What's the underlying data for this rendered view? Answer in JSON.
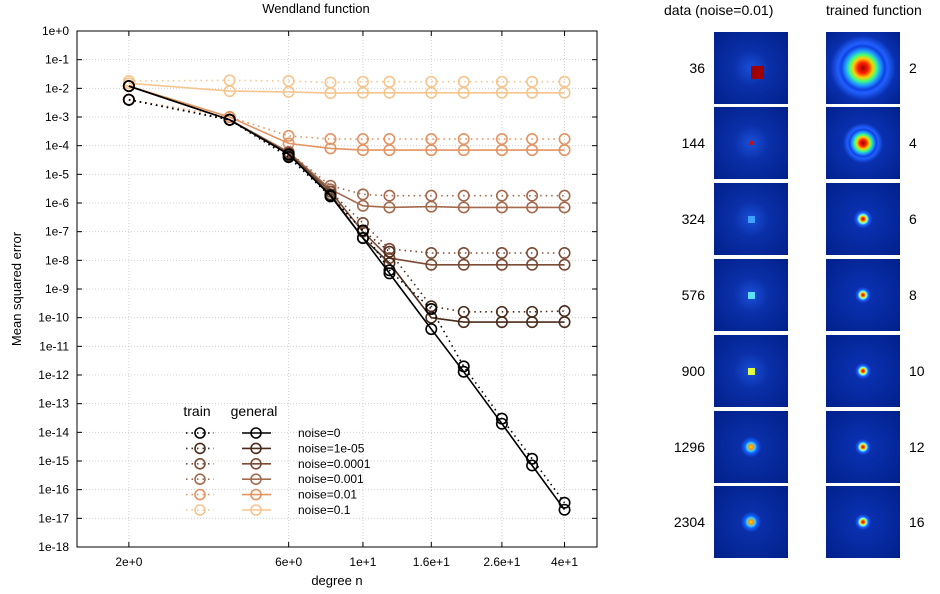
{
  "chart_data": {
    "type": "line",
    "title": "Wendland function",
    "xlabel": "degree n",
    "ylabel": "Mean squared error",
    "x_scale": "log",
    "y_scale": "log",
    "xlim": [
      1.4,
      50
    ],
    "ylim": [
      1e-18,
      1
    ],
    "x_ticks": [
      {
        "value": 2,
        "label": "2e+0"
      },
      {
        "value": 6,
        "label": "6e+0"
      },
      {
        "value": 10,
        "label": "1e+1"
      },
      {
        "value": 16,
        "label": "1.6e+1"
      },
      {
        "value": 26,
        "label": "2.6e+1"
      },
      {
        "value": 40,
        "label": "4e+1"
      }
    ],
    "y_tick_labels": [
      "1e+0",
      "1e-1",
      "1e-2",
      "1e-3",
      "1e-4",
      "1e-5",
      "1e-6",
      "1e-7",
      "1e-8",
      "1e-9",
      "1e-10",
      "1e-11",
      "1e-12",
      "1e-13",
      "1e-14",
      "1e-15",
      "1e-16",
      "1e-17",
      "1e-18"
    ],
    "grid": true,
    "legend": {
      "position": "bottom-left",
      "header_train": "train",
      "header_general": "general",
      "entries": [
        "noise=0",
        "noise=1e-05",
        "noise=0.0001",
        "noise=0.001",
        "noise=0.01",
        "noise=0.1"
      ]
    },
    "x": [
      2,
      4,
      6,
      8,
      10,
      12,
      16,
      20,
      26,
      32,
      40
    ],
    "series": [
      {
        "name": "noise=0",
        "color": "#000000",
        "train": [
          0.004,
          0.0008,
          4e-05,
          1.7e-06,
          1.1e-07,
          4.5e-09,
          2e-10,
          2e-12,
          3e-14,
          1.2e-15,
          3.5e-17
        ],
        "general": [
          0.012,
          0.0008,
          5e-05,
          1.8e-06,
          6e-08,
          3.5e-09,
          4e-11,
          1.3e-12,
          2e-14,
          7e-16,
          2e-17
        ]
      },
      {
        "name": "noise=1e-05",
        "color": "#4a2c1c",
        "train": [
          0.004,
          0.0008,
          4.5e-05,
          1.8e-06,
          1.1e-07,
          2e-08,
          2.5e-10,
          1.6e-10,
          1.6e-10,
          1.6e-10,
          1.7e-10
        ],
        "general": [
          0.012,
          0.0008,
          5e-05,
          2e-06,
          6e-08,
          8e-09,
          1e-10,
          7e-11,
          7e-11,
          7e-11,
          7e-11
        ]
      },
      {
        "name": "noise=0.0001",
        "color": "#7a4b35",
        "train": [
          0.004,
          0.0008,
          5e-05,
          2.5e-06,
          2e-07,
          2.5e-08,
          1.8e-08,
          1.8e-08,
          1.8e-08,
          1.8e-08,
          1.8e-08
        ],
        "general": [
          0.012,
          0.0008,
          5.5e-05,
          2.5e-06,
          1e-07,
          1.2e-08,
          7e-09,
          7e-09,
          7e-09,
          7e-09,
          7e-09
        ]
      },
      {
        "name": "noise=0.001",
        "color": "#a36a4e",
        "train": [
          0.004,
          0.0008,
          6e-05,
          4e-06,
          2e-06,
          1.8e-06,
          1.8e-06,
          1.8e-06,
          1.8e-06,
          1.8e-06,
          1.8e-06
        ],
        "general": [
          0.012,
          0.0008,
          6e-05,
          3e-06,
          8e-07,
          7e-07,
          7.5e-07,
          7e-07,
          7e-07,
          7e-07,
          7e-07
        ]
      },
      {
        "name": "noise=0.01",
        "color": "#e39462",
        "train": [
          0.004,
          0.001,
          0.00022,
          0.00017,
          0.00017,
          0.00017,
          0.00017,
          0.00017,
          0.00017,
          0.00017,
          0.00017
        ],
        "general": [
          0.012,
          0.001,
          0.00012,
          8e-05,
          7e-05,
          7e-05,
          7e-05,
          7e-05,
          7e-05,
          7e-05,
          7e-05
        ]
      },
      {
        "name": "noise=0.1",
        "color": "#f6c58e",
        "train": [
          0.018,
          0.019,
          0.018,
          0.016,
          0.017,
          0.017,
          0.017,
          0.017,
          0.017,
          0.017,
          0.017
        ],
        "general": [
          0.015,
          0.008,
          0.0075,
          0.0068,
          0.007,
          0.007,
          0.007,
          0.007,
          0.007,
          0.007,
          0.007
        ]
      }
    ]
  },
  "images_panel": {
    "data_title": "data (noise=0.01)",
    "trained_title": "trained function",
    "rows": [
      {
        "count": "36",
        "degree": "2",
        "data_blob": 0.18,
        "data_color": "#a00000",
        "data_square": true,
        "trained_blob": 0.42,
        "trained_ring": true
      },
      {
        "count": "144",
        "degree": "4",
        "data_blob": 0.06,
        "data_color": "#c01010",
        "data_square": true,
        "trained_blob": 0.26,
        "trained_ring": true
      },
      {
        "count": "324",
        "degree": "6",
        "data_blob": 0.1,
        "data_color": "#40a0ff",
        "data_square": true,
        "trained_blob": 0.14,
        "trained_ring": false
      },
      {
        "count": "576",
        "degree": "8",
        "data_blob": 0.1,
        "data_color": "#60e0ff",
        "data_square": true,
        "trained_blob": 0.12,
        "trained_ring": false
      },
      {
        "count": "900",
        "degree": "10",
        "data_blob": 0.09,
        "data_color": "#e0ff40",
        "data_square": true,
        "trained_blob": 0.12,
        "trained_ring": false
      },
      {
        "count": "1296",
        "degree": "12",
        "data_blob": 0.1,
        "data_color": "#ffe000",
        "data_square": false,
        "trained_blob": 0.12,
        "trained_ring": false
      },
      {
        "count": "2304",
        "degree": "16",
        "data_blob": 0.1,
        "data_color": "#ffd000",
        "data_square": false,
        "trained_blob": 0.12,
        "trained_ring": false
      }
    ]
  }
}
